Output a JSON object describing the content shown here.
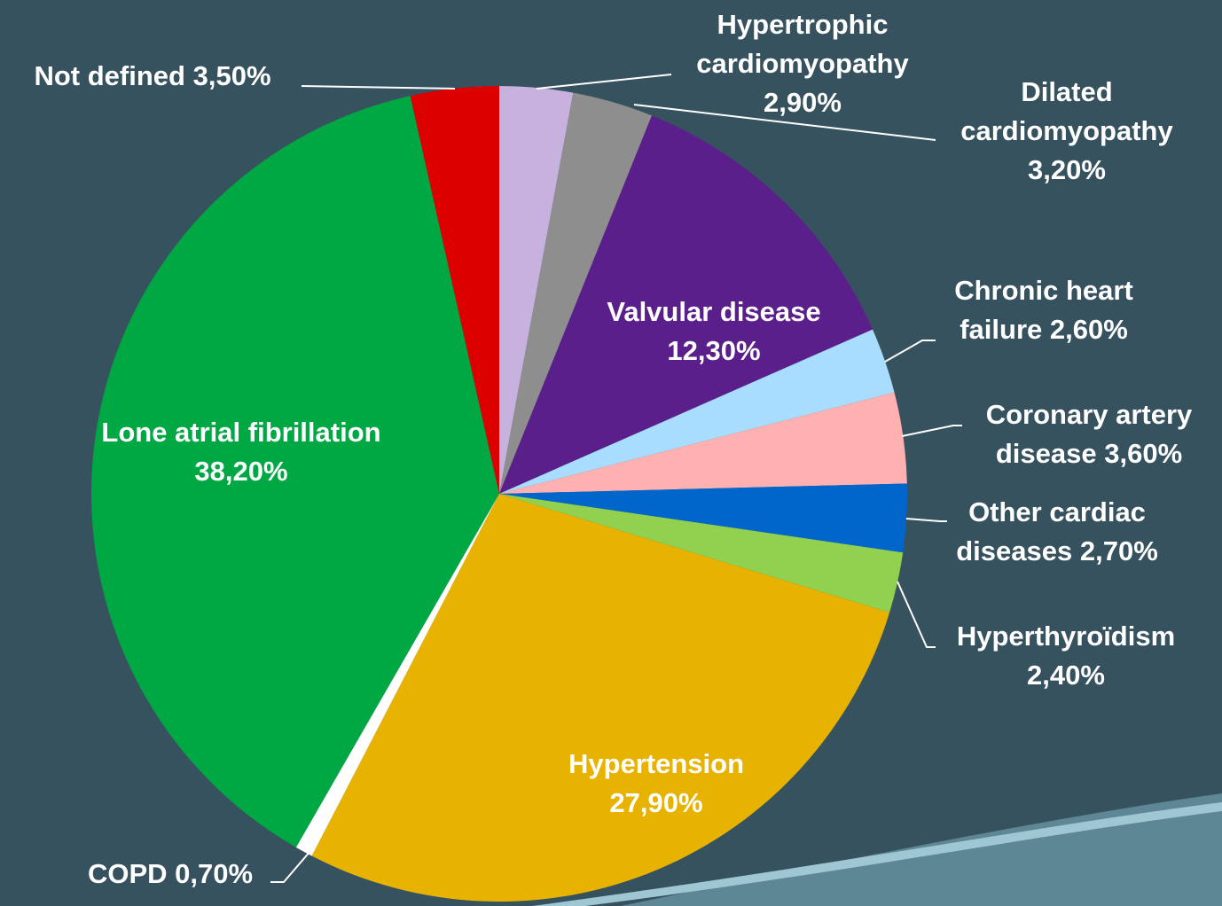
{
  "chart_data": {
    "type": "pie",
    "categories": [
      "Hypertrophic cardiomyopathy",
      "Dilated cardiomyopathy",
      "Valvular disease",
      "Chronic heart failure",
      "Coronary artery disease",
      "Other cardiac diseases",
      "Hyperthyroïdism",
      "Hypertension",
      "COPD",
      "Lone atrial fibrillation",
      "Not defined"
    ],
    "values": [
      2.9,
      3.2,
      12.3,
      2.6,
      3.6,
      2.7,
      2.4,
      27.9,
      0.7,
      38.2,
      3.5
    ],
    "value_labels": [
      "2,90%",
      "3,20%",
      "12,30%",
      "2,60%",
      "3,60%",
      "2,70%",
      "2,40%",
      "27,90%",
      "0,70%",
      "38,20%",
      "3,50%"
    ],
    "colors": [
      "#c7b1df",
      "#8e8e8e",
      "#5b1f8c",
      "#a8ddff",
      "#ffb0b0",
      "#0066cc",
      "#92d050",
      "#e8b200",
      "#ffffff",
      "#00a844",
      "#dd0000"
    ]
  }
}
